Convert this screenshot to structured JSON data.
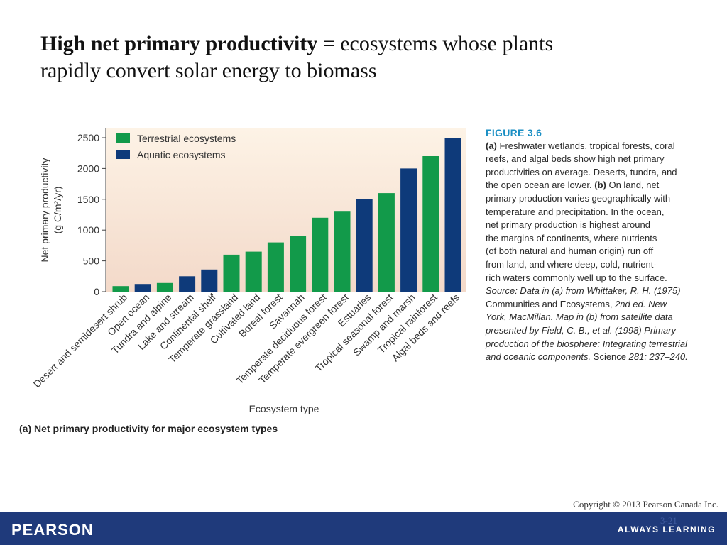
{
  "slide": {
    "title_bold": "High net primary productivity",
    "title_rest": " = ecosystems whose plants",
    "title_line2": "rapidly convert solar energy to biomass"
  },
  "chart_data": {
    "type": "bar",
    "ylabel_line1": "Net primary productivity",
    "ylabel_line2": "(g C/m²/yr)",
    "xlabel": "Ecosystem type",
    "ylim": [
      0,
      2500
    ],
    "yticks": [
      0,
      500,
      1000,
      1500,
      2000,
      2500
    ],
    "grid": false,
    "legend_position": "top-left",
    "legend": [
      {
        "key": "terrestrial",
        "label": "Terrestrial ecosystems",
        "color": "#129a4a"
      },
      {
        "key": "aquatic",
        "label": "Aquatic ecosystems",
        "color": "#0e3a7a"
      }
    ],
    "background_gradient": [
      "#fdf3e6",
      "#f3d9c9"
    ],
    "categories": [
      "Desert and semidesert shrub",
      "Open ocean",
      "Tundra and alpine",
      "Lake and stream",
      "Continental shelf",
      "Temperate grassland",
      "Cultivated land",
      "Boreal forest",
      "Savannah",
      "Temperate deciduous forest",
      "Temperate evergreen forest",
      "Estuaries",
      "Tropical seasonal forest",
      "Swamp and marsh",
      "Tropical rainforest",
      "Algal beds and reefs"
    ],
    "values": [
      90,
      125,
      140,
      250,
      360,
      600,
      650,
      800,
      900,
      1200,
      1300,
      1500,
      1600,
      2000,
      2200,
      2500
    ],
    "types": [
      "terrestrial",
      "aquatic",
      "terrestrial",
      "aquatic",
      "aquatic",
      "terrestrial",
      "terrestrial",
      "terrestrial",
      "terrestrial",
      "terrestrial",
      "terrestrial",
      "aquatic",
      "terrestrial",
      "aquatic",
      "terrestrial",
      "aquatic"
    ]
  },
  "figure_caption": {
    "label": "FIGURE 3.6",
    "lines": [
      [
        {
          "t": "(a)",
          "s": "b"
        },
        {
          "t": " Freshwater wetlands, tropical forests, coral"
        }
      ],
      [
        {
          "t": "reefs, and algal beds show high net primary"
        }
      ],
      [
        {
          "t": "productivities on average. Deserts, tundra, and"
        }
      ],
      [
        {
          "t": "the open ocean are lower. "
        },
        {
          "t": "(b)",
          "s": "b"
        },
        {
          "t": " On land, net"
        }
      ],
      [
        {
          "t": "primary production varies geographically with"
        }
      ],
      [
        {
          "t": "temperature and precipitation. In the ocean,"
        }
      ],
      [
        {
          "t": "net primary production is highest around"
        }
      ],
      [
        {
          "t": "the margins of continents, where nutrients"
        }
      ],
      [
        {
          "t": "(of both natural and human origin) run off"
        }
      ],
      [
        {
          "t": "from land, and where deep, cold, nutrient-"
        }
      ],
      [
        {
          "t": "rich waters commonly well up to the surface."
        }
      ],
      [
        {
          "t": "Source: Data in (a) from Whittaker, R. H. (1975)",
          "s": "i"
        }
      ],
      [
        {
          "t": "Communities and Ecosystems, "
        },
        {
          "t": "2nd ed. New",
          "s": "i"
        }
      ],
      [
        {
          "t": "York, MacMillan. Map in (b) from satellite data",
          "s": "i"
        }
      ],
      [
        {
          "t": "presented by Field, C. B., et al. (1998) Primary",
          "s": "i"
        }
      ],
      [
        {
          "t": "production of the biosphere: Integrating terrestrial",
          "s": "i"
        }
      ],
      [
        {
          "t": "and oceanic components.",
          "s": "i"
        },
        {
          "t": " Science "
        },
        {
          "t": "281: 237–240.",
          "s": "i"
        }
      ]
    ]
  },
  "panel_caption": "(a) Net primary productivity for major ecosystem types",
  "footer": {
    "copyright": "Copyright © 2013 Pearson Canada Inc.",
    "page_number": "3-21",
    "logo_text": "PEARSON",
    "tagline": "ALWAYS LEARNING"
  }
}
